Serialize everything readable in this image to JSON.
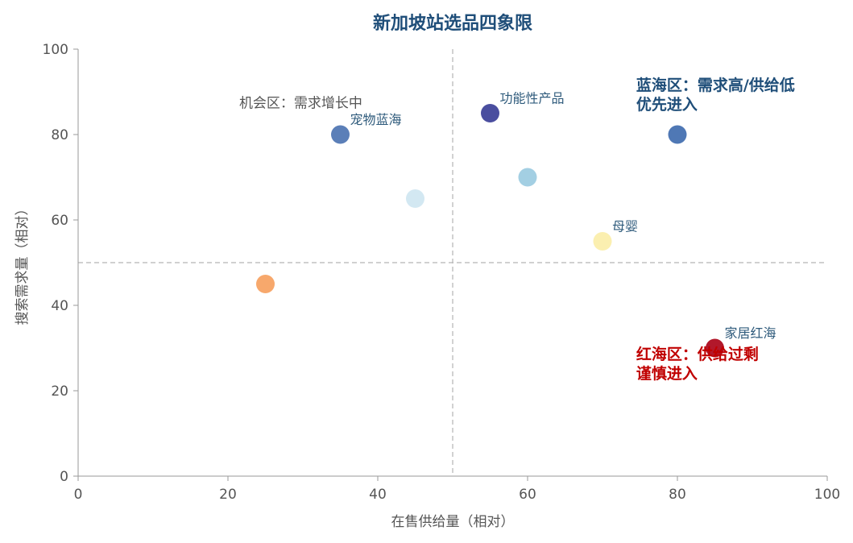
{
  "chart_data": {
    "type": "scatter",
    "title": "新加坡站选品四象限",
    "xlabel": "在售供给量（相对）",
    "ylabel": "搜索需求量（相对）",
    "xlim": [
      0,
      100
    ],
    "ylim": [
      0,
      100
    ],
    "xticks": [
      0,
      20,
      40,
      60,
      80,
      100
    ],
    "yticks": [
      0,
      20,
      40,
      60,
      80,
      100
    ],
    "dividers": {
      "x": 50,
      "y": 50
    },
    "grid": false,
    "points": [
      {
        "x": 35,
        "y": 80,
        "color": "#5b7fb8",
        "label": "宠物蓝海"
      },
      {
        "x": 55,
        "y": 85,
        "color": "#4a4e9f",
        "label": "功能性产品"
      },
      {
        "x": 80,
        "y": 80,
        "color": "#4f78b5",
        "label": ""
      },
      {
        "x": 60,
        "y": 70,
        "color": "#a3cfe3",
        "label": ""
      },
      {
        "x": 45,
        "y": 65,
        "color": "#d3e8f2",
        "label": ""
      },
      {
        "x": 70,
        "y": 55,
        "color": "#fbefb0",
        "label": "母婴"
      },
      {
        "x": 25,
        "y": 45,
        "color": "#f7a86c",
        "label": ""
      },
      {
        "x": 85,
        "y": 30,
        "color": "#b2182b",
        "label": "家居红海"
      }
    ],
    "annotations": [
      {
        "text": "机会区：需求增长中",
        "x": 21.5,
        "y": 87.5,
        "style": "note"
      },
      {
        "text": "蓝海区：需求高/供给低",
        "x": 74.5,
        "y": 91.5,
        "style": "blue"
      },
      {
        "text": "优先进入",
        "x": 74.5,
        "y": 87.0,
        "style": "blue"
      },
      {
        "text": "红海区：供给过剩",
        "x": 74.5,
        "y": 28.5,
        "style": "red"
      },
      {
        "text": "谨慎进入",
        "x": 74.5,
        "y": 24.0,
        "style": "red"
      }
    ]
  }
}
